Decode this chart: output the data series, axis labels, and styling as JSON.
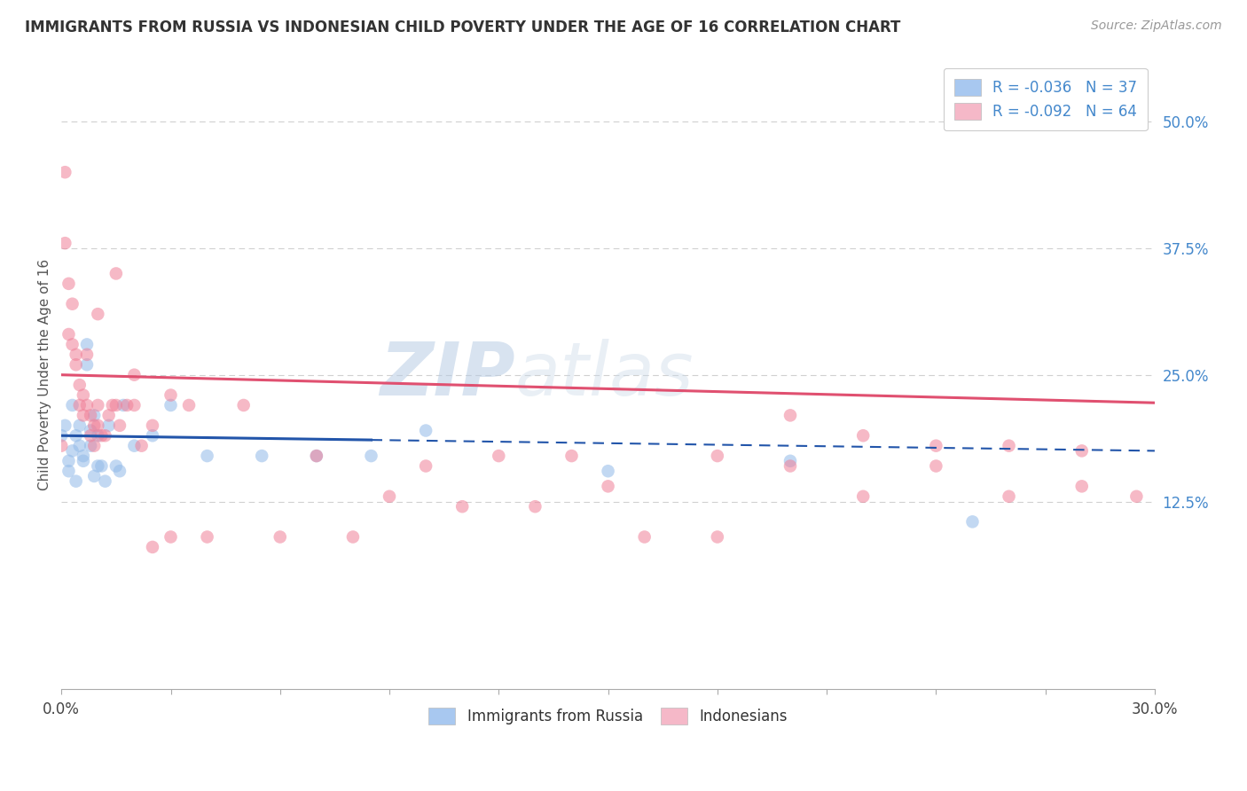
{
  "title": "IMMIGRANTS FROM RUSSIA VS INDONESIAN CHILD POVERTY UNDER THE AGE OF 16 CORRELATION CHART",
  "source": "Source: ZipAtlas.com",
  "ylabel": "Child Poverty Under the Age of 16",
  "right_yticks": [
    0.0,
    0.125,
    0.25,
    0.375,
    0.5
  ],
  "right_yticklabels": [
    "",
    "12.5%",
    "25.0%",
    "37.5%",
    "50.0%"
  ],
  "legend_bottom": [
    "Immigrants from Russia",
    "Indonesians"
  ],
  "watermark_zip": "ZIP",
  "watermark_atlas": "atlas",
  "blue_scatter_x": [
    0.0,
    0.001,
    0.002,
    0.002,
    0.003,
    0.003,
    0.004,
    0.004,
    0.005,
    0.005,
    0.006,
    0.006,
    0.007,
    0.007,
    0.008,
    0.008,
    0.009,
    0.009,
    0.01,
    0.01,
    0.011,
    0.012,
    0.013,
    0.015,
    0.016,
    0.017,
    0.02,
    0.025,
    0.03,
    0.04,
    0.055,
    0.07,
    0.085,
    0.1,
    0.15,
    0.2,
    0.25
  ],
  "blue_scatter_y": [
    0.19,
    0.2,
    0.155,
    0.165,
    0.175,
    0.22,
    0.19,
    0.145,
    0.2,
    0.18,
    0.165,
    0.17,
    0.28,
    0.26,
    0.195,
    0.18,
    0.21,
    0.15,
    0.19,
    0.16,
    0.16,
    0.145,
    0.2,
    0.16,
    0.155,
    0.22,
    0.18,
    0.19,
    0.22,
    0.17,
    0.17,
    0.17,
    0.17,
    0.195,
    0.155,
    0.165,
    0.105
  ],
  "pink_scatter_x": [
    0.0,
    0.001,
    0.001,
    0.002,
    0.002,
    0.003,
    0.003,
    0.004,
    0.004,
    0.005,
    0.005,
    0.006,
    0.006,
    0.007,
    0.007,
    0.008,
    0.008,
    0.009,
    0.009,
    0.01,
    0.01,
    0.011,
    0.012,
    0.013,
    0.014,
    0.015,
    0.016,
    0.018,
    0.02,
    0.022,
    0.025,
    0.03,
    0.035,
    0.04,
    0.06,
    0.08,
    0.1,
    0.12,
    0.14,
    0.16,
    0.18,
    0.2,
    0.22,
    0.24,
    0.26,
    0.28,
    0.01,
    0.015,
    0.02,
    0.025,
    0.03,
    0.05,
    0.07,
    0.09,
    0.11,
    0.13,
    0.15,
    0.18,
    0.2,
    0.22,
    0.24,
    0.26,
    0.28,
    0.295
  ],
  "pink_scatter_y": [
    0.18,
    0.45,
    0.38,
    0.34,
    0.29,
    0.32,
    0.28,
    0.27,
    0.26,
    0.24,
    0.22,
    0.23,
    0.21,
    0.27,
    0.22,
    0.21,
    0.19,
    0.2,
    0.18,
    0.2,
    0.22,
    0.19,
    0.19,
    0.21,
    0.22,
    0.22,
    0.2,
    0.22,
    0.22,
    0.18,
    0.2,
    0.23,
    0.22,
    0.09,
    0.09,
    0.09,
    0.16,
    0.17,
    0.17,
    0.09,
    0.09,
    0.16,
    0.13,
    0.16,
    0.18,
    0.175,
    0.31,
    0.35,
    0.25,
    0.08,
    0.09,
    0.22,
    0.17,
    0.13,
    0.12,
    0.12,
    0.14,
    0.17,
    0.21,
    0.19,
    0.18,
    0.13,
    0.14,
    0.13
  ],
  "blue_line_x0": 0.0,
  "blue_line_x1": 0.085,
  "blue_line_x2": 0.3,
  "blue_line_intercept": 0.19,
  "blue_line_slope": -0.05,
  "pink_line_x0": 0.0,
  "pink_line_x1": 0.3,
  "pink_line_intercept": 0.25,
  "pink_line_slope": -0.092,
  "xlim": [
    0.0,
    0.3
  ],
  "ylim": [
    -0.06,
    0.56
  ],
  "xticks": [
    0.0,
    0.03,
    0.06,
    0.09,
    0.12,
    0.15,
    0.18,
    0.21,
    0.24,
    0.27,
    0.3
  ],
  "background_color": "#ffffff",
  "grid_color": "#d0d0d0",
  "scatter_alpha": 0.55,
  "scatter_size": 110,
  "blue_color": "#91b9e8",
  "pink_color": "#f08098",
  "blue_line_color": "#2255aa",
  "pink_line_color": "#e05070",
  "legend_r_blue": "R = -0.036   N = 37",
  "legend_r_pink": "R = -0.092   N = 64",
  "legend_patch_blue": "#a8c8f0",
  "legend_patch_pink": "#f5b8c8",
  "right_tick_color": "#4488cc",
  "title_fontsize": 12,
  "source_fontsize": 10
}
